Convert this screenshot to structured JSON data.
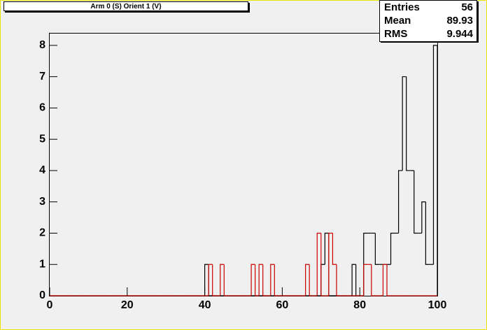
{
  "title": "Arm 0 (S) Orient 1 (V)",
  "stats": [
    {
      "label": "Entries",
      "value": 56
    },
    {
      "label": "Mean",
      "value": 89.93
    },
    {
      "label": "RMS",
      "value": 9.944
    }
  ],
  "chart_data": {
    "type": "histogram",
    "bins": [
      0,
      1,
      2,
      3,
      4,
      5,
      6,
      7,
      8,
      9,
      10,
      11,
      12,
      13,
      14,
      15,
      16,
      17,
      18,
      19,
      20,
      21,
      22,
      23,
      24,
      25,
      26,
      27,
      28,
      29,
      30,
      31,
      32,
      33,
      34,
      35,
      36,
      37,
      38,
      39,
      40,
      41,
      42,
      43,
      44,
      45,
      46,
      47,
      48,
      49,
      50,
      51,
      52,
      53,
      54,
      55,
      56,
      57,
      58,
      59,
      60,
      61,
      62,
      63,
      64,
      65,
      66,
      67,
      68,
      69,
      70,
      71,
      72,
      73,
      74,
      75,
      76,
      77,
      78,
      79,
      80,
      81,
      82,
      83,
      84,
      85,
      86,
      87,
      88,
      89,
      90,
      91,
      92,
      93,
      94,
      95,
      96,
      97,
      98,
      99,
      100
    ],
    "series": [
      {
        "color": "#000000",
        "values": [
          0,
          0,
          0,
          0,
          0,
          0,
          0,
          0,
          0,
          0,
          0,
          0,
          0,
          0,
          0,
          0,
          0,
          0,
          0,
          0,
          0,
          0,
          0,
          0,
          0,
          0,
          0,
          0,
          0,
          0,
          0,
          0,
          0,
          0,
          0,
          0,
          0,
          0,
          0,
          0,
          1,
          0,
          0,
          0,
          0,
          0,
          0,
          0,
          0,
          0,
          0,
          0,
          0,
          0,
          0,
          0,
          0,
          0,
          0,
          0,
          0,
          0,
          0,
          0,
          0,
          0,
          0,
          0,
          0,
          0,
          1,
          2,
          0,
          0,
          0,
          0,
          0,
          0,
          1,
          0,
          0,
          2,
          2,
          2,
          1,
          1,
          1,
          1,
          2,
          2,
          4,
          7,
          4,
          4,
          2,
          2,
          3,
          1,
          1,
          8
        ]
      },
      {
        "color": "#cc0000",
        "values": [
          0,
          0,
          0,
          0,
          0,
          0,
          0,
          0,
          0,
          0,
          0,
          0,
          0,
          0,
          0,
          0,
          0,
          0,
          0,
          0,
          0,
          0,
          0,
          0,
          0,
          0,
          0,
          0,
          0,
          0,
          0,
          0,
          0,
          0,
          0,
          0,
          0,
          0,
          0,
          0,
          0,
          1,
          0,
          0,
          1,
          0,
          0,
          0,
          0,
          0,
          0,
          0,
          1,
          0,
          1,
          0,
          0,
          1,
          0,
          0,
          0,
          0,
          0,
          0,
          0,
          0,
          1,
          0,
          0,
          2,
          0,
          0,
          2,
          1,
          0,
          0,
          0,
          0,
          0,
          0,
          0,
          1,
          1,
          0,
          0,
          0,
          1,
          0,
          0,
          0,
          0,
          0,
          0,
          0,
          0,
          0,
          0,
          0,
          0,
          0
        ]
      }
    ],
    "xlim": [
      0,
      100
    ],
    "ylim": [
      0,
      8.4
    ],
    "xticks": [
      0,
      20,
      40,
      60,
      80,
      100
    ],
    "yticks": [
      0,
      1,
      2,
      3,
      4,
      5,
      6,
      7,
      8
    ]
  }
}
